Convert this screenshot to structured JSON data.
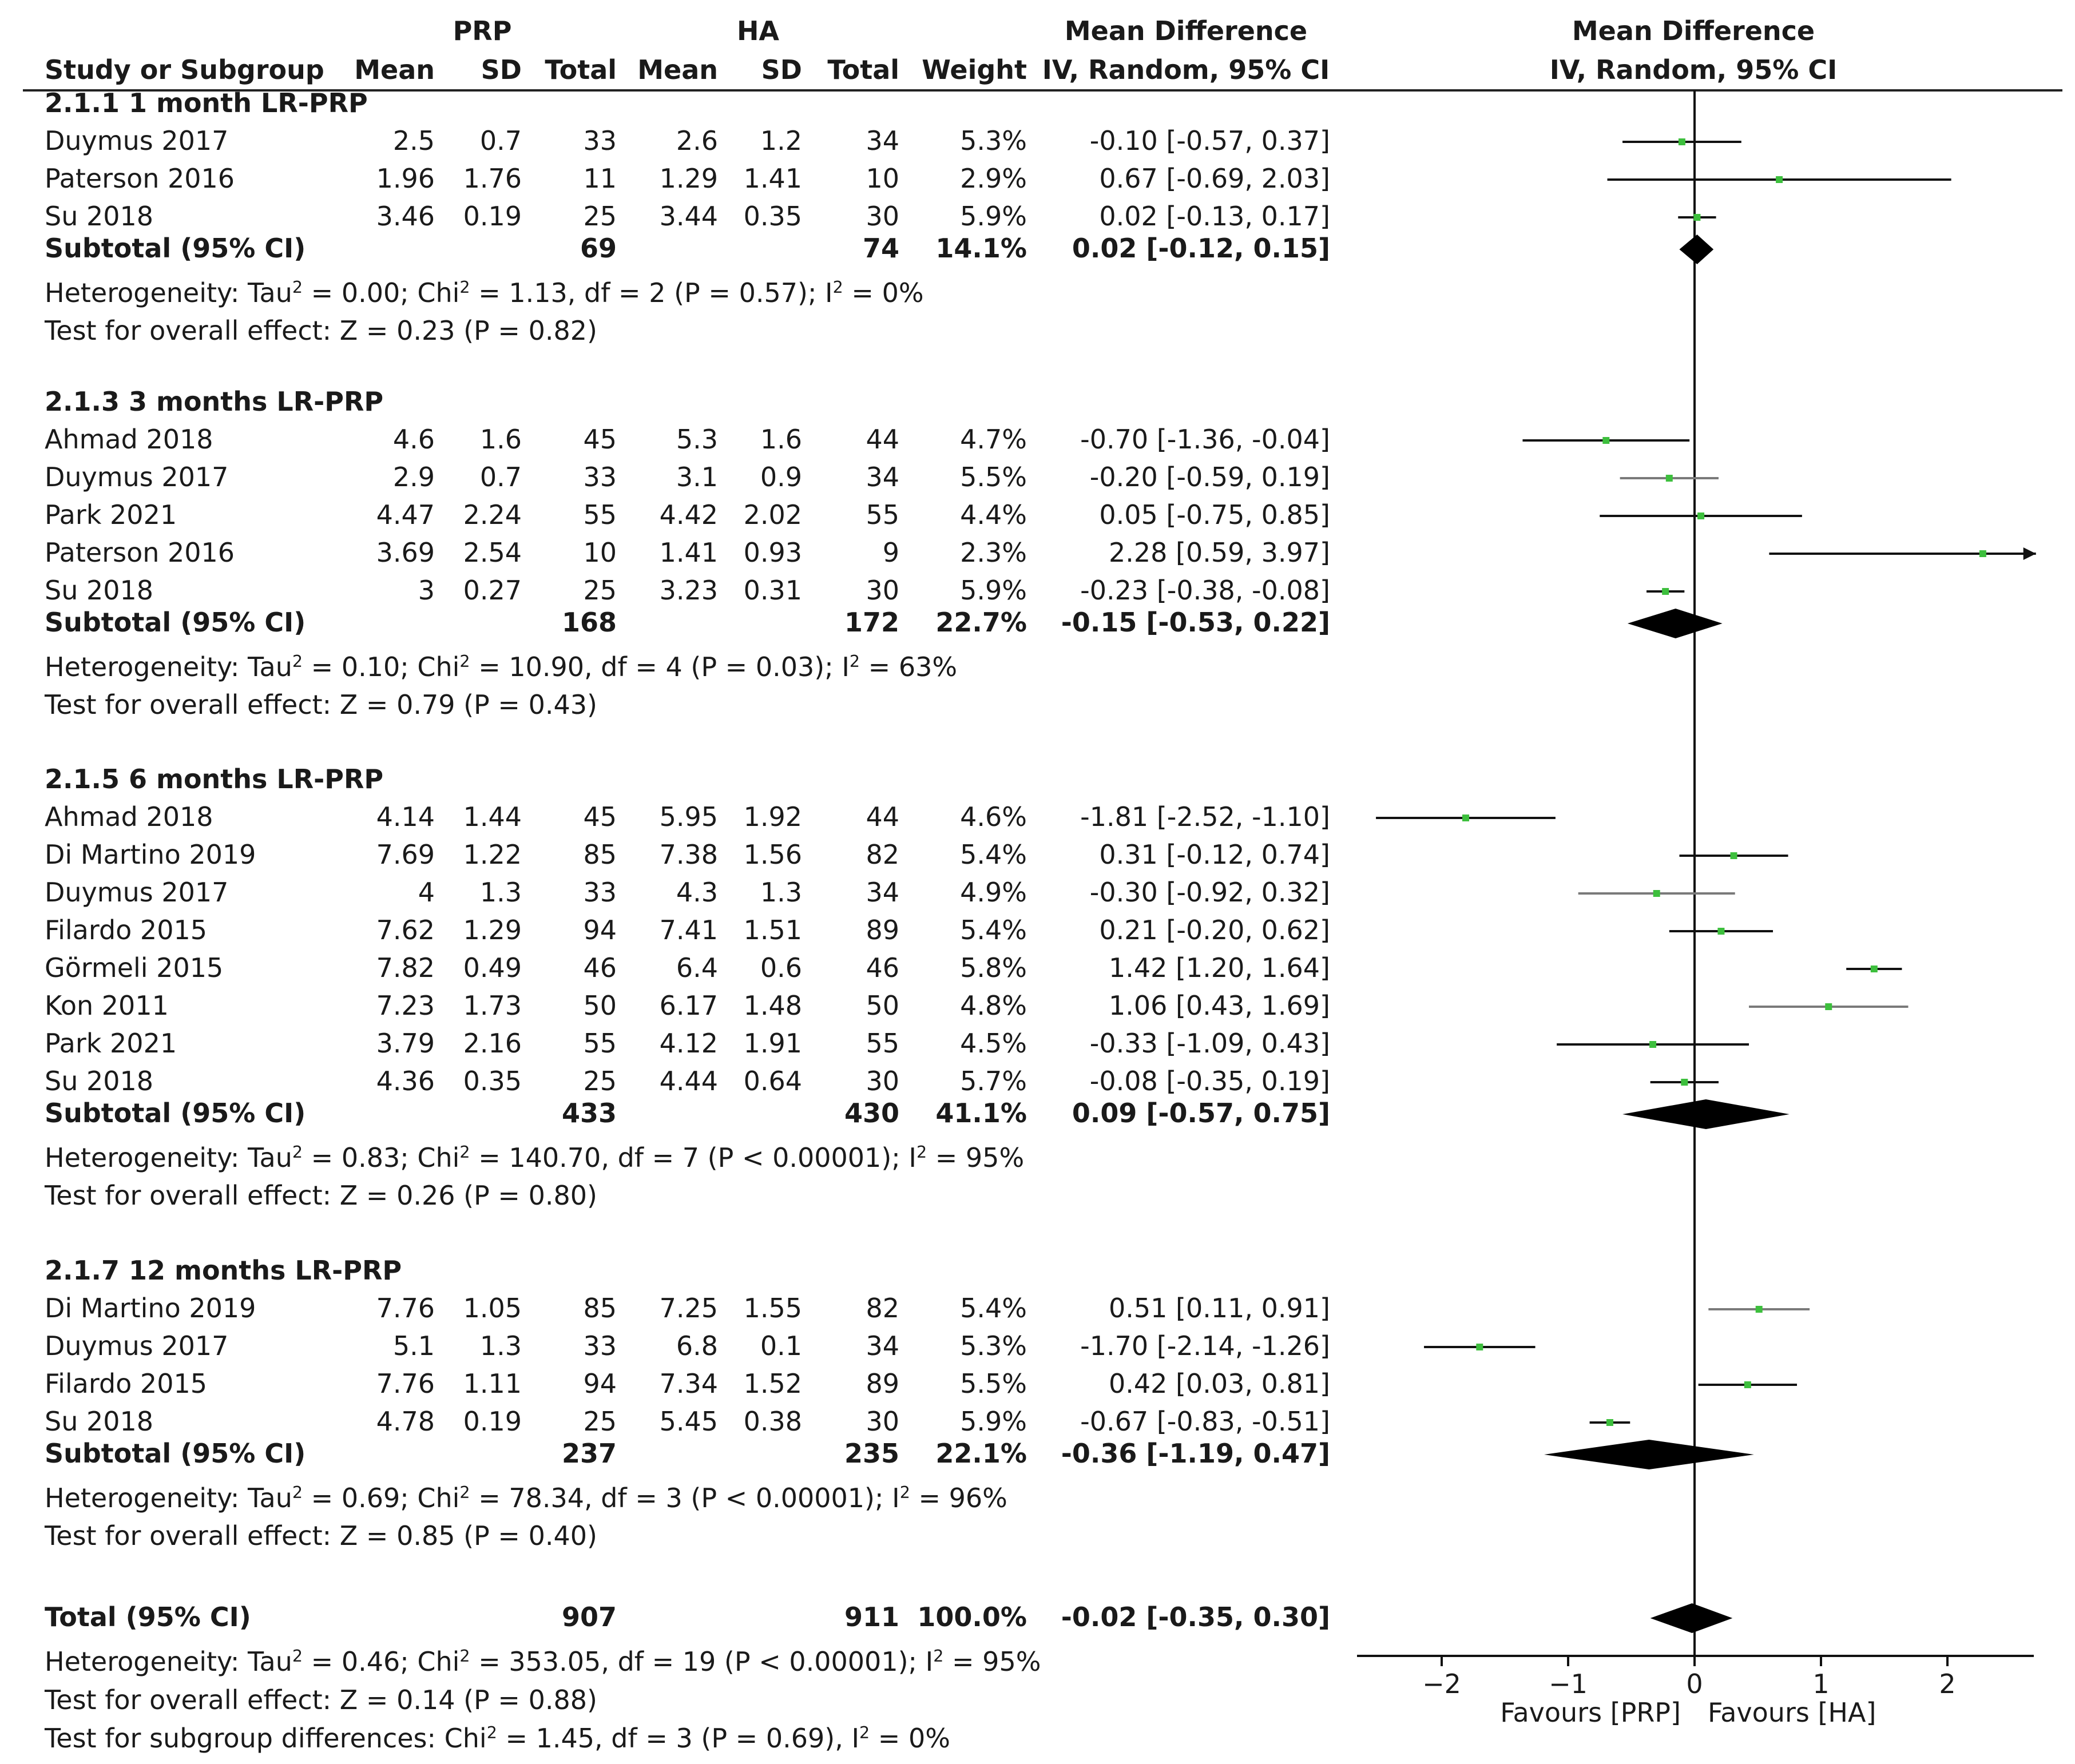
{
  "chart_data": {
    "type": "forest",
    "title": "Mean Difference IV, Random, 95% CI",
    "header": {
      "group1": "PRP",
      "group2": "HA",
      "study_col": "Study or Subgroup",
      "mean": "Mean",
      "sd": "SD",
      "total": "Total",
      "weight": "Weight",
      "md_title": "Mean Difference",
      "md_sub": "IV, Random, 95% CI"
    },
    "subgroups": [
      {
        "title": "2.1.1 1 month LR-PRP",
        "studies": [
          {
            "study": "Duymus 2017",
            "prp_mean": "2.5",
            "prp_sd": "0.7",
            "prp_total": "33",
            "ha_mean": "2.6",
            "ha_sd": "1.2",
            "ha_total": "34",
            "weight": "5.3%",
            "ci_text": "-0.10 [-0.57, 0.37]",
            "md": -0.1,
            "lo": -0.57,
            "hi": 0.37
          },
          {
            "study": "Paterson 2016",
            "prp_mean": "1.96",
            "prp_sd": "1.76",
            "prp_total": "11",
            "ha_mean": "1.29",
            "ha_sd": "1.41",
            "ha_total": "10",
            "weight": "2.9%",
            "ci_text": "0.67 [-0.69, 2.03]",
            "md": 0.67,
            "lo": -0.69,
            "hi": 2.03
          },
          {
            "study": "Su 2018",
            "prp_mean": "3.46",
            "prp_sd": "0.19",
            "prp_total": "25",
            "ha_mean": "3.44",
            "ha_sd": "0.35",
            "ha_total": "30",
            "weight": "5.9%",
            "ci_text": "0.02 [-0.13, 0.17]",
            "md": 0.02,
            "lo": -0.13,
            "hi": 0.17
          }
        ],
        "subtotal": {
          "label": "Subtotal (95% CI)",
          "prp_total": "69",
          "ha_total": "74",
          "weight": "14.1%",
          "ci_text": "0.02 [-0.12, 0.15]",
          "md": 0.02,
          "lo": -0.12,
          "hi": 0.15
        },
        "heterogeneity": {
          "prefix": "Heterogeneity: Tau",
          "tau2": " = 0.00; Chi",
          "chi2": " = 1.13, df = 2 (P = 0.57); I",
          "i2": " = 0%"
        },
        "overall": "Test for overall effect: Z = 0.23 (P = 0.82)"
      },
      {
        "title": "2.1.3 3 months LR-PRP",
        "studies": [
          {
            "study": "Ahmad 2018",
            "prp_mean": "4.6",
            "prp_sd": "1.6",
            "prp_total": "45",
            "ha_mean": "5.3",
            "ha_sd": "1.6",
            "ha_total": "44",
            "weight": "4.7%",
            "ci_text": "-0.70 [-1.36, -0.04]",
            "md": -0.7,
            "lo": -1.36,
            "hi": -0.04
          },
          {
            "study": "Duymus 2017",
            "prp_mean": "2.9",
            "prp_sd": "0.7",
            "prp_total": "33",
            "ha_mean": "3.1",
            "ha_sd": "0.9",
            "ha_total": "34",
            "weight": "5.5%",
            "ci_text": "-0.20 [-0.59, 0.19]",
            "md": -0.2,
            "lo": -0.59,
            "hi": 0.19
          },
          {
            "study": "Park 2021",
            "prp_mean": "4.47",
            "prp_sd": "2.24",
            "prp_total": "55",
            "ha_mean": "4.42",
            "ha_sd": "2.02",
            "ha_total": "55",
            "weight": "4.4%",
            "ci_text": "0.05 [-0.75, 0.85]",
            "md": 0.05,
            "lo": -0.75,
            "hi": 0.85
          },
          {
            "study": "Paterson 2016",
            "prp_mean": "3.69",
            "prp_sd": "2.54",
            "prp_total": "10",
            "ha_mean": "1.41",
            "ha_sd": "0.93",
            "ha_total": "9",
            "weight": "2.3%",
            "ci_text": "2.28 [0.59, 3.97]",
            "md": 2.28,
            "lo": 0.59,
            "hi": 3.97
          },
          {
            "study": "Su 2018",
            "prp_mean": "3",
            "prp_sd": "0.27",
            "prp_total": "25",
            "ha_mean": "3.23",
            "ha_sd": "0.31",
            "ha_total": "30",
            "weight": "5.9%",
            "ci_text": "-0.23 [-0.38, -0.08]",
            "md": -0.23,
            "lo": -0.38,
            "hi": -0.08
          }
        ],
        "subtotal": {
          "label": "Subtotal (95% CI)",
          "prp_total": "168",
          "ha_total": "172",
          "weight": "22.7%",
          "ci_text": "-0.15 [-0.53, 0.22]",
          "md": -0.15,
          "lo": -0.53,
          "hi": 0.22
        },
        "heterogeneity": {
          "prefix": "Heterogeneity: Tau",
          "tau2": " = 0.10; Chi",
          "chi2": " = 10.90, df = 4 (P = 0.03); I",
          "i2": " = 63%"
        },
        "overall": "Test for overall effect: Z = 0.79 (P = 0.43)"
      },
      {
        "title": "2.1.5 6 months LR-PRP",
        "studies": [
          {
            "study": "Ahmad 2018",
            "prp_mean": "4.14",
            "prp_sd": "1.44",
            "prp_total": "45",
            "ha_mean": "5.95",
            "ha_sd": "1.92",
            "ha_total": "44",
            "weight": "4.6%",
            "ci_text": "-1.81 [-2.52, -1.10]",
            "md": -1.81,
            "lo": -2.52,
            "hi": -1.1
          },
          {
            "study": "Di Martino 2019",
            "prp_mean": "7.69",
            "prp_sd": "1.22",
            "prp_total": "85",
            "ha_mean": "7.38",
            "ha_sd": "1.56",
            "ha_total": "82",
            "weight": "5.4%",
            "ci_text": "0.31 [-0.12, 0.74]",
            "md": 0.31,
            "lo": -0.12,
            "hi": 0.74
          },
          {
            "study": "Duymus 2017",
            "prp_mean": "4",
            "prp_sd": "1.3",
            "prp_total": "33",
            "ha_mean": "4.3",
            "ha_sd": "1.3",
            "ha_total": "34",
            "weight": "4.9%",
            "ci_text": "-0.30 [-0.92, 0.32]",
            "md": -0.3,
            "lo": -0.92,
            "hi": 0.32
          },
          {
            "study": "Filardo 2015",
            "prp_mean": "7.62",
            "prp_sd": "1.29",
            "prp_total": "94",
            "ha_mean": "7.41",
            "ha_sd": "1.51",
            "ha_total": "89",
            "weight": "5.4%",
            "ci_text": "0.21 [-0.20, 0.62]",
            "md": 0.21,
            "lo": -0.2,
            "hi": 0.62
          },
          {
            "study": "Görmeli 2015",
            "prp_mean": "7.82",
            "prp_sd": "0.49",
            "prp_total": "46",
            "ha_mean": "6.4",
            "ha_sd": "0.6",
            "ha_total": "46",
            "weight": "5.8%",
            "ci_text": "1.42 [1.20, 1.64]",
            "md": 1.42,
            "lo": 1.2,
            "hi": 1.64
          },
          {
            "study": "Kon 2011",
            "prp_mean": "7.23",
            "prp_sd": "1.73",
            "prp_total": "50",
            "ha_mean": "6.17",
            "ha_sd": "1.48",
            "ha_total": "50",
            "weight": "4.8%",
            "ci_text": "1.06 [0.43, 1.69]",
            "md": 1.06,
            "lo": 0.43,
            "hi": 1.69
          },
          {
            "study": "Park 2021",
            "prp_mean": "3.79",
            "prp_sd": "2.16",
            "prp_total": "55",
            "ha_mean": "4.12",
            "ha_sd": "1.91",
            "ha_total": "55",
            "weight": "4.5%",
            "ci_text": "-0.33 [-1.09, 0.43]",
            "md": -0.33,
            "lo": -1.09,
            "hi": 0.43
          },
          {
            "study": "Su 2018",
            "prp_mean": "4.36",
            "prp_sd": "0.35",
            "prp_total": "25",
            "ha_mean": "4.44",
            "ha_sd": "0.64",
            "ha_total": "30",
            "weight": "5.7%",
            "ci_text": "-0.08 [-0.35, 0.19]",
            "md": -0.08,
            "lo": -0.35,
            "hi": 0.19
          }
        ],
        "subtotal": {
          "label": "Subtotal (95% CI)",
          "prp_total": "433",
          "ha_total": "430",
          "weight": "41.1%",
          "ci_text": "0.09 [-0.57, 0.75]",
          "md": 0.09,
          "lo": -0.57,
          "hi": 0.75
        },
        "heterogeneity": {
          "prefix": "Heterogeneity: Tau",
          "tau2": " = 0.83; Chi",
          "chi2": " = 140.70, df = 7 (P < 0.00001); I",
          "i2": " = 95%"
        },
        "overall": "Test for overall effect: Z = 0.26 (P = 0.80)"
      },
      {
        "title": "2.1.7 12 months LR-PRP",
        "studies": [
          {
            "study": "Di Martino 2019",
            "prp_mean": "7.76",
            "prp_sd": "1.05",
            "prp_total": "85",
            "ha_mean": "7.25",
            "ha_sd": "1.55",
            "ha_total": "82",
            "weight": "5.4%",
            "ci_text": "0.51 [0.11, 0.91]",
            "md": 0.51,
            "lo": 0.11,
            "hi": 0.91
          },
          {
            "study": "Duymus 2017",
            "prp_mean": "5.1",
            "prp_sd": "1.3",
            "prp_total": "33",
            "ha_mean": "6.8",
            "ha_sd": "0.1",
            "ha_total": "34",
            "weight": "5.3%",
            "ci_text": "-1.70 [-2.14, -1.26]",
            "md": -1.7,
            "lo": -2.14,
            "hi": -1.26
          },
          {
            "study": "Filardo 2015",
            "prp_mean": "7.76",
            "prp_sd": "1.11",
            "prp_total": "94",
            "ha_mean": "7.34",
            "ha_sd": "1.52",
            "ha_total": "89",
            "weight": "5.5%",
            "ci_text": "0.42 [0.03, 0.81]",
            "md": 0.42,
            "lo": 0.03,
            "hi": 0.81
          },
          {
            "study": "Su 2018",
            "prp_mean": "4.78",
            "prp_sd": "0.19",
            "prp_total": "25",
            "ha_mean": "5.45",
            "ha_sd": "0.38",
            "ha_total": "30",
            "weight": "5.9%",
            "ci_text": "-0.67 [-0.83, -0.51]",
            "md": -0.67,
            "lo": -0.83,
            "hi": -0.51
          }
        ],
        "subtotal": {
          "label": "Subtotal (95% CI)",
          "prp_total": "237",
          "ha_total": "235",
          "weight": "22.1%",
          "ci_text": "-0.36 [-1.19, 0.47]",
          "md": -0.36,
          "lo": -1.19,
          "hi": 0.47
        },
        "heterogeneity": {
          "prefix": "Heterogeneity: Tau",
          "tau2": " = 0.69; Chi",
          "chi2": " = 78.34, df = 3 (P < 0.00001); I",
          "i2": " = 96%"
        },
        "overall": "Test for overall effect: Z = 0.85 (P = 0.40)"
      }
    ],
    "total": {
      "label": "Total (95% CI)",
      "prp_total": "907",
      "ha_total": "911",
      "weight": "100.0%",
      "ci_text": "-0.02 [-0.35, 0.30]",
      "md": -0.02,
      "lo": -0.35,
      "hi": 0.3,
      "heterogeneity": {
        "prefix": "Heterogeneity: Tau",
        "tau2": " = 0.46; Chi",
        "chi2": " = 353.05, df = 19 (P < 0.00001); I",
        "i2": " = 95%"
      },
      "overall": "Test for overall effect: Z = 0.14 (P = 0.88)",
      "subgroup_diff": {
        "prefix": "Test for subgroup differences: Chi",
        "chi2": " = 1.45, df = 3 (P = 0.69), I",
        "i2": " = 0%"
      }
    },
    "axis": {
      "xlim": [
        -2.7,
        2.7
      ],
      "ticks": [
        -2,
        -1,
        0,
        1,
        2
      ],
      "tick_labels": [
        "−2",
        "−1",
        "0",
        "1",
        "2"
      ],
      "favours_left": "Favours [PRP]",
      "favours_right": "Favours [HA]"
    },
    "superscript": "2",
    "colors": {
      "marker": "#3dbf3d",
      "text": "#1a1a1a",
      "diamond": "#000000",
      "ci_line": "#111111",
      "ci_line_alt": "#7a7a7a"
    }
  }
}
